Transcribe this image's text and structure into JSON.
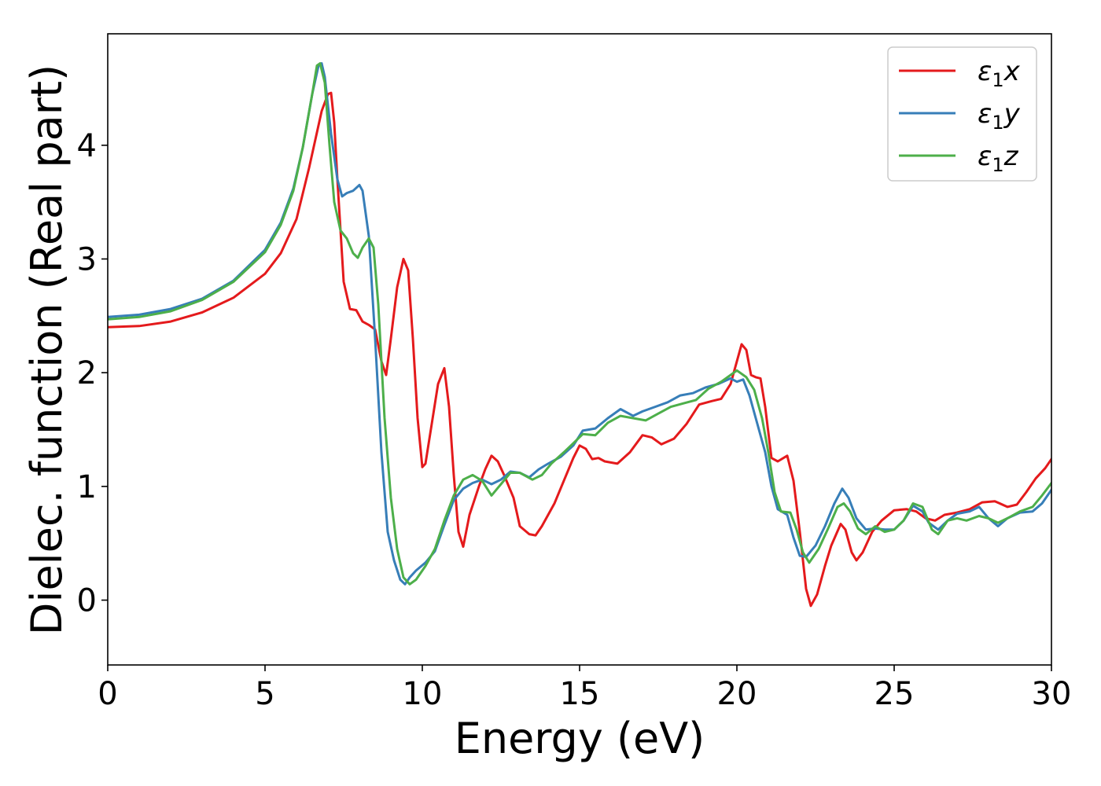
{
  "chart_data": {
    "type": "line",
    "xlabel": "Energy (eV)",
    "ylabel": "Dielec. function (Real part)",
    "xlim": [
      0,
      30
    ],
    "ylim": [
      -0.57,
      4.98
    ],
    "xticks": [
      0,
      5,
      10,
      15,
      20,
      25,
      30
    ],
    "yticks": [
      0,
      1,
      2,
      3,
      4
    ],
    "grid": false,
    "legend_position": "top-right",
    "series": [
      {
        "name": "ε₁x",
        "legend_main": "ε",
        "legend_sub": "1",
        "legend_suffix": "x",
        "color": "#e41a1c",
        "points": [
          [
            0,
            2.4
          ],
          [
            1,
            2.41
          ],
          [
            2,
            2.45
          ],
          [
            3,
            2.53
          ],
          [
            4,
            2.66
          ],
          [
            5,
            2.87
          ],
          [
            5.5,
            3.05
          ],
          [
            6,
            3.35
          ],
          [
            6.4,
            3.8
          ],
          [
            6.8,
            4.3
          ],
          [
            7.0,
            4.45
          ],
          [
            7.1,
            4.46
          ],
          [
            7.2,
            4.2
          ],
          [
            7.3,
            3.7
          ],
          [
            7.5,
            2.8
          ],
          [
            7.7,
            2.56
          ],
          [
            7.9,
            2.55
          ],
          [
            8.1,
            2.45
          ],
          [
            8.3,
            2.42
          ],
          [
            8.5,
            2.38
          ],
          [
            8.7,
            2.1
          ],
          [
            8.85,
            1.98
          ],
          [
            9.0,
            2.3
          ],
          [
            9.2,
            2.75
          ],
          [
            9.4,
            3.0
          ],
          [
            9.55,
            2.9
          ],
          [
            9.7,
            2.3
          ],
          [
            9.85,
            1.6
          ],
          [
            10.0,
            1.17
          ],
          [
            10.1,
            1.2
          ],
          [
            10.3,
            1.55
          ],
          [
            10.5,
            1.9
          ],
          [
            10.7,
            2.04
          ],
          [
            10.85,
            1.7
          ],
          [
            11.0,
            1.1
          ],
          [
            11.15,
            0.6
          ],
          [
            11.3,
            0.47
          ],
          [
            11.5,
            0.75
          ],
          [
            11.8,
            1.0
          ],
          [
            12.0,
            1.15
          ],
          [
            12.2,
            1.27
          ],
          [
            12.4,
            1.22
          ],
          [
            12.6,
            1.1
          ],
          [
            12.9,
            0.9
          ],
          [
            13.1,
            0.65
          ],
          [
            13.4,
            0.58
          ],
          [
            13.6,
            0.57
          ],
          [
            13.8,
            0.65
          ],
          [
            14.2,
            0.85
          ],
          [
            14.5,
            1.05
          ],
          [
            14.8,
            1.25
          ],
          [
            15.0,
            1.36
          ],
          [
            15.2,
            1.33
          ],
          [
            15.4,
            1.24
          ],
          [
            15.6,
            1.25
          ],
          [
            15.8,
            1.22
          ],
          [
            16.2,
            1.2
          ],
          [
            16.6,
            1.3
          ],
          [
            17.0,
            1.45
          ],
          [
            17.3,
            1.43
          ],
          [
            17.6,
            1.37
          ],
          [
            18.0,
            1.42
          ],
          [
            18.4,
            1.55
          ],
          [
            18.8,
            1.72
          ],
          [
            19.2,
            1.75
          ],
          [
            19.5,
            1.77
          ],
          [
            19.8,
            1.9
          ],
          [
            20.0,
            2.1
          ],
          [
            20.15,
            2.25
          ],
          [
            20.3,
            2.2
          ],
          [
            20.45,
            1.98
          ],
          [
            20.6,
            1.96
          ],
          [
            20.75,
            1.95
          ],
          [
            20.9,
            1.7
          ],
          [
            21.1,
            1.25
          ],
          [
            21.3,
            1.22
          ],
          [
            21.6,
            1.27
          ],
          [
            21.8,
            1.05
          ],
          [
            22.0,
            0.6
          ],
          [
            22.2,
            0.1
          ],
          [
            22.35,
            -0.05
          ],
          [
            22.55,
            0.05
          ],
          [
            22.8,
            0.3
          ],
          [
            23.0,
            0.48
          ],
          [
            23.3,
            0.67
          ],
          [
            23.45,
            0.62
          ],
          [
            23.65,
            0.42
          ],
          [
            23.8,
            0.35
          ],
          [
            24.0,
            0.42
          ],
          [
            24.3,
            0.6
          ],
          [
            24.6,
            0.7
          ],
          [
            25.0,
            0.79
          ],
          [
            25.4,
            0.8
          ],
          [
            25.7,
            0.78
          ],
          [
            26.0,
            0.72
          ],
          [
            26.3,
            0.7
          ],
          [
            26.6,
            0.75
          ],
          [
            27.0,
            0.77
          ],
          [
            27.4,
            0.8
          ],
          [
            27.8,
            0.86
          ],
          [
            28.2,
            0.87
          ],
          [
            28.6,
            0.82
          ],
          [
            28.9,
            0.84
          ],
          [
            29.2,
            0.95
          ],
          [
            29.5,
            1.07
          ],
          [
            29.8,
            1.16
          ],
          [
            30.0,
            1.24
          ]
        ]
      },
      {
        "name": "ε₁y",
        "legend_main": "ε",
        "legend_sub": "1",
        "legend_suffix": "y",
        "color": "#377eb8",
        "points": [
          [
            0,
            2.49
          ],
          [
            1,
            2.51
          ],
          [
            2,
            2.56
          ],
          [
            3,
            2.65
          ],
          [
            4,
            2.81
          ],
          [
            5,
            3.08
          ],
          [
            5.5,
            3.32
          ],
          [
            5.9,
            3.62
          ],
          [
            6.2,
            3.98
          ],
          [
            6.5,
            4.45
          ],
          [
            6.7,
            4.7
          ],
          [
            6.8,
            4.72
          ],
          [
            6.9,
            4.6
          ],
          [
            7.1,
            4.1
          ],
          [
            7.3,
            3.7
          ],
          [
            7.45,
            3.55
          ],
          [
            7.6,
            3.58
          ],
          [
            7.8,
            3.6
          ],
          [
            8.0,
            3.65
          ],
          [
            8.1,
            3.6
          ],
          [
            8.3,
            3.2
          ],
          [
            8.5,
            2.3
          ],
          [
            8.7,
            1.3
          ],
          [
            8.9,
            0.6
          ],
          [
            9.1,
            0.35
          ],
          [
            9.3,
            0.18
          ],
          [
            9.45,
            0.14
          ],
          [
            9.6,
            0.2
          ],
          [
            9.8,
            0.26
          ],
          [
            10.1,
            0.33
          ],
          [
            10.4,
            0.43
          ],
          [
            10.7,
            0.66
          ],
          [
            11.0,
            0.88
          ],
          [
            11.3,
            0.98
          ],
          [
            11.6,
            1.03
          ],
          [
            11.9,
            1.06
          ],
          [
            12.2,
            1.02
          ],
          [
            12.5,
            1.06
          ],
          [
            12.8,
            1.13
          ],
          [
            13.1,
            1.12
          ],
          [
            13.4,
            1.08
          ],
          [
            13.7,
            1.15
          ],
          [
            14.0,
            1.2
          ],
          [
            14.4,
            1.26
          ],
          [
            14.8,
            1.36
          ],
          [
            15.1,
            1.49
          ],
          [
            15.5,
            1.51
          ],
          [
            15.9,
            1.6
          ],
          [
            16.3,
            1.68
          ],
          [
            16.7,
            1.62
          ],
          [
            17.0,
            1.66
          ],
          [
            17.4,
            1.7
          ],
          [
            17.8,
            1.74
          ],
          [
            18.2,
            1.8
          ],
          [
            18.6,
            1.82
          ],
          [
            19.0,
            1.87
          ],
          [
            19.4,
            1.9
          ],
          [
            19.8,
            1.95
          ],
          [
            20.0,
            1.92
          ],
          [
            20.2,
            1.94
          ],
          [
            20.4,
            1.8
          ],
          [
            20.6,
            1.6
          ],
          [
            20.9,
            1.3
          ],
          [
            21.1,
            1.0
          ],
          [
            21.3,
            0.8
          ],
          [
            21.6,
            0.75
          ],
          [
            21.8,
            0.55
          ],
          [
            22.0,
            0.39
          ],
          [
            22.2,
            0.38
          ],
          [
            22.5,
            0.48
          ],
          [
            22.8,
            0.65
          ],
          [
            23.1,
            0.85
          ],
          [
            23.35,
            0.98
          ],
          [
            23.55,
            0.9
          ],
          [
            23.8,
            0.72
          ],
          [
            24.1,
            0.62
          ],
          [
            24.4,
            0.63
          ],
          [
            24.7,
            0.62
          ],
          [
            25.0,
            0.62
          ],
          [
            25.3,
            0.7
          ],
          [
            25.6,
            0.83
          ],
          [
            25.9,
            0.78
          ],
          [
            26.1,
            0.68
          ],
          [
            26.4,
            0.62
          ],
          [
            26.7,
            0.7
          ],
          [
            27.0,
            0.76
          ],
          [
            27.4,
            0.78
          ],
          [
            27.7,
            0.82
          ],
          [
            28.0,
            0.72
          ],
          [
            28.3,
            0.65
          ],
          [
            28.6,
            0.72
          ],
          [
            29.0,
            0.77
          ],
          [
            29.4,
            0.78
          ],
          [
            29.7,
            0.85
          ],
          [
            30.0,
            0.97
          ]
        ]
      },
      {
        "name": "ε₁z",
        "legend_main": "ε",
        "legend_sub": "1",
        "legend_suffix": "z",
        "color": "#4daf4a",
        "points": [
          [
            0,
            2.47
          ],
          [
            1,
            2.49
          ],
          [
            2,
            2.54
          ],
          [
            3,
            2.64
          ],
          [
            4,
            2.8
          ],
          [
            5,
            3.06
          ],
          [
            5.5,
            3.3
          ],
          [
            5.9,
            3.6
          ],
          [
            6.2,
            3.98
          ],
          [
            6.5,
            4.45
          ],
          [
            6.65,
            4.7
          ],
          [
            6.75,
            4.72
          ],
          [
            6.9,
            4.55
          ],
          [
            7.05,
            4.0
          ],
          [
            7.2,
            3.5
          ],
          [
            7.4,
            3.25
          ],
          [
            7.6,
            3.18
          ],
          [
            7.8,
            3.05
          ],
          [
            7.95,
            3.01
          ],
          [
            8.1,
            3.1
          ],
          [
            8.3,
            3.18
          ],
          [
            8.45,
            3.1
          ],
          [
            8.6,
            2.6
          ],
          [
            8.8,
            1.6
          ],
          [
            9.0,
            0.9
          ],
          [
            9.2,
            0.45
          ],
          [
            9.4,
            0.2
          ],
          [
            9.6,
            0.14
          ],
          [
            9.8,
            0.18
          ],
          [
            10.1,
            0.3
          ],
          [
            10.4,
            0.45
          ],
          [
            10.7,
            0.7
          ],
          [
            11.0,
            0.92
          ],
          [
            11.3,
            1.06
          ],
          [
            11.6,
            1.1
          ],
          [
            11.9,
            1.05
          ],
          [
            12.2,
            0.92
          ],
          [
            12.5,
            1.02
          ],
          [
            12.8,
            1.12
          ],
          [
            13.1,
            1.12
          ],
          [
            13.5,
            1.06
          ],
          [
            13.8,
            1.1
          ],
          [
            14.1,
            1.2
          ],
          [
            14.5,
            1.3
          ],
          [
            14.8,
            1.38
          ],
          [
            15.1,
            1.46
          ],
          [
            15.5,
            1.45
          ],
          [
            15.9,
            1.56
          ],
          [
            16.3,
            1.62
          ],
          [
            16.7,
            1.6
          ],
          [
            17.1,
            1.58
          ],
          [
            17.5,
            1.64
          ],
          [
            17.9,
            1.7
          ],
          [
            18.3,
            1.73
          ],
          [
            18.7,
            1.76
          ],
          [
            19.1,
            1.86
          ],
          [
            19.5,
            1.92
          ],
          [
            19.8,
            1.98
          ],
          [
            20.0,
            2.02
          ],
          [
            20.3,
            1.96
          ],
          [
            20.55,
            1.85
          ],
          [
            20.8,
            1.6
          ],
          [
            21.0,
            1.3
          ],
          [
            21.2,
            0.95
          ],
          [
            21.4,
            0.78
          ],
          [
            21.7,
            0.77
          ],
          [
            21.9,
            0.62
          ],
          [
            22.1,
            0.42
          ],
          [
            22.3,
            0.33
          ],
          [
            22.6,
            0.45
          ],
          [
            22.9,
            0.63
          ],
          [
            23.2,
            0.82
          ],
          [
            23.4,
            0.85
          ],
          [
            23.6,
            0.78
          ],
          [
            23.85,
            0.63
          ],
          [
            24.1,
            0.58
          ],
          [
            24.4,
            0.65
          ],
          [
            24.7,
            0.6
          ],
          [
            25.0,
            0.62
          ],
          [
            25.3,
            0.7
          ],
          [
            25.6,
            0.85
          ],
          [
            25.9,
            0.82
          ],
          [
            26.2,
            0.62
          ],
          [
            26.4,
            0.58
          ],
          [
            26.7,
            0.7
          ],
          [
            27.0,
            0.72
          ],
          [
            27.3,
            0.7
          ],
          [
            27.7,
            0.74
          ],
          [
            28.0,
            0.72
          ],
          [
            28.3,
            0.68
          ],
          [
            28.6,
            0.72
          ],
          [
            29.0,
            0.78
          ],
          [
            29.4,
            0.82
          ],
          [
            29.7,
            0.92
          ],
          [
            30.0,
            1.03
          ]
        ]
      }
    ]
  }
}
